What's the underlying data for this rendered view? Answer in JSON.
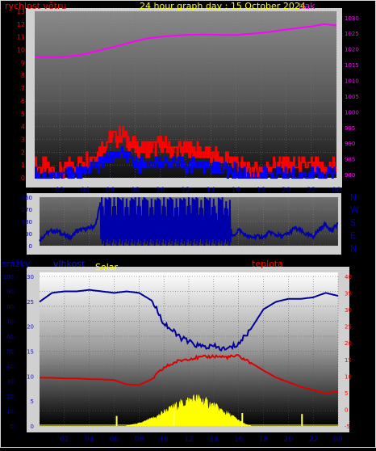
{
  "colors": {
    "background": "#000000",
    "frame": "#d4d4d4",
    "title": "#ffff00",
    "wind_label": "#ff0000",
    "pressure": "#ff00ff",
    "gust": "#ff0000",
    "wind_avg": "#0000ff",
    "direction_line": "#0000aa",
    "direction_label": "#0000aa",
    "precip_label": "#0000cc",
    "humidity": "#000099",
    "temperature": "#dd0000",
    "solar": "#ffff00",
    "precip_bar": "#ffff66"
  },
  "chart_data": [
    {
      "type": "line",
      "id": "wind-pressure",
      "title": "24 hour graph day : 15 October 2024",
      "left_axis_label": "rychlost větru",
      "right_axis_label": "tlak",
      "x_ticks": [
        "02",
        "04",
        "06",
        "08",
        "10",
        "12",
        "14",
        "16",
        "18",
        "20",
        "22",
        "00"
      ],
      "y_left_ticks": [
        "0",
        "1",
        "2",
        "3",
        "4",
        "5",
        "6",
        "7",
        "8",
        "9",
        "10",
        "11",
        "12",
        "13"
      ],
      "y_left_range": [
        0,
        13
      ],
      "y_right_ticks": [
        "980",
        "985",
        "990",
        "995",
        "1000",
        "1005",
        "1010",
        "1015",
        "1020",
        "1025",
        "1030"
      ],
      "y_right_range": [
        979,
        1032
      ],
      "x_range": [
        0,
        24
      ],
      "grid": true,
      "series": [
        {
          "role": "pressure",
          "axis": "right",
          "x": [
            0,
            1,
            2,
            3,
            4,
            5,
            6,
            7,
            8,
            9,
            10,
            11,
            12,
            13,
            14,
            15,
            16,
            17,
            18,
            19,
            20,
            21,
            22,
            23,
            24
          ],
          "values": [
            1017.5,
            1017.4,
            1017.4,
            1017.8,
            1018.4,
            1019.4,
            1020.4,
            1021.4,
            1022.5,
            1023.4,
            1023.9,
            1024.2,
            1024.5,
            1024.6,
            1024.6,
            1024.5,
            1024.5,
            1024.8,
            1025.1,
            1025.6,
            1026.2,
            1026.7,
            1027.2,
            1027.9,
            1027.5
          ]
        },
        {
          "role": "gust",
          "axis": "left",
          "x": [
            0,
            1,
            2,
            3,
            4,
            5,
            6,
            7,
            8,
            9,
            10,
            11,
            12,
            13,
            14,
            15,
            16,
            17,
            18,
            19,
            20,
            21,
            22,
            23,
            24
          ],
          "values": [
            0.9,
            0.7,
            0.5,
            0.9,
            1.4,
            1.9,
            3.1,
            3.3,
            2.3,
            2.2,
            2.5,
            2.2,
            2.2,
            2.0,
            1.7,
            1.4,
            1.2,
            0.4,
            0.7,
            1.0,
            0.9,
            0.8,
            0.9,
            0.6,
            1.0
          ]
        },
        {
          "role": "wind_avg",
          "axis": "left",
          "x": [
            0,
            1,
            2,
            3,
            4,
            5,
            6,
            7,
            8,
            9,
            10,
            11,
            12,
            13,
            14,
            15,
            16,
            17,
            18,
            19,
            20,
            21,
            22,
            23,
            24
          ],
          "values": [
            0.3,
            0.2,
            0.2,
            0.3,
            0.6,
            0.9,
            1.7,
            1.8,
            1.1,
            1.0,
            1.2,
            1.1,
            1.0,
            1.0,
            0.8,
            0.7,
            0.5,
            0.1,
            0.2,
            0.3,
            0.3,
            0.2,
            0.3,
            0.2,
            0.4
          ]
        }
      ]
    },
    {
      "type": "line",
      "id": "wind-direction",
      "x_ticks": [
        "02",
        "04",
        "06",
        "08",
        "10",
        "12",
        "14",
        "16",
        "18",
        "20",
        "22",
        "00"
      ],
      "y_ticks": [
        "0",
        "90",
        "180",
        "270",
        "360"
      ],
      "y_tick_marks": [
        "0",
        "90",
        "180",
        "270",
        "360"
      ],
      "y_range": [
        0,
        360
      ],
      "compass_labels": [
        "N",
        "W",
        "S",
        "E",
        "N"
      ],
      "x_range": [
        0,
        24
      ],
      "grid": true,
      "series": [
        {
          "role": "direction",
          "x": [
            0,
            0.5,
            1,
            1.5,
            2,
            2.5,
            3,
            3.5,
            4,
            4.5,
            5,
            5.5,
            6,
            6.5,
            7,
            7.5,
            8,
            8.5,
            9,
            9.5,
            10,
            10.5,
            11,
            11.5,
            12,
            12.5,
            13,
            13.5,
            14,
            14.5,
            15,
            15.5,
            16,
            16.5,
            17,
            17.5,
            18,
            18.5,
            19,
            19.5,
            20,
            20.5,
            21,
            21.5,
            22,
            22.5,
            23,
            23.5,
            24
          ],
          "values": [
            40,
            90,
            110,
            105,
            80,
            60,
            110,
            120,
            130,
            150,
            360,
            20,
            360,
            30,
            350,
            40,
            360,
            20,
            350,
            40,
            360,
            10,
            350,
            30,
            360,
            60,
            340,
            40,
            350,
            80,
            330,
            60,
            120,
            80,
            60,
            70,
            60,
            100,
            80,
            70,
            90,
            130,
            110,
            80,
            70,
            120,
            160,
            110,
            170
          ]
        }
      ]
    },
    {
      "type": "line",
      "id": "humidity-temp",
      "labels": {
        "precip": "srážky",
        "humidity": "vlhkost",
        "solar": "Solar",
        "temperature": "teplota"
      },
      "x_ticks": [
        "02",
        "04",
        "06",
        "08",
        "10",
        "12",
        "14",
        "16",
        "18",
        "20",
        "22",
        "00"
      ],
      "y_precip_ticks": [
        "0",
        "10",
        "20",
        "30",
        "40",
        "50",
        "60",
        "70",
        "80",
        "90",
        "100"
      ],
      "y_precip_range": [
        0,
        100
      ],
      "y_humidity_ticks": [
        "0",
        "5",
        "10",
        "15",
        "20",
        "25",
        "30"
      ],
      "y_humidity_range": [
        0,
        30
      ],
      "y_temp_ticks": [
        "-5",
        "0",
        "5",
        "10",
        "15",
        "20",
        "25",
        "30",
        "35",
        "40"
      ],
      "y_temp_range": [
        -5,
        40
      ],
      "x_range": [
        0,
        24
      ],
      "grid": true,
      "series": [
        {
          "role": "humidity",
          "axis": "precip",
          "x": [
            0,
            1,
            2,
            3,
            4,
            5,
            6,
            7,
            8,
            9,
            10,
            11,
            12,
            13,
            14,
            15,
            16,
            17,
            18,
            19,
            20,
            21,
            22,
            23,
            24
          ],
          "values": [
            83,
            89,
            90,
            90,
            91,
            90,
            89,
            90,
            89,
            84,
            69,
            61,
            56,
            53,
            53,
            51,
            55,
            65,
            78,
            83,
            85,
            85,
            86,
            89,
            87
          ]
        },
        {
          "role": "temperature",
          "axis": "temp",
          "x": [
            0,
            1,
            2,
            3,
            4,
            5,
            6,
            7,
            8,
            9,
            10,
            11,
            12,
            13,
            14,
            15,
            16,
            17,
            18,
            19,
            20,
            21,
            22,
            23,
            24
          ],
          "values": [
            9.5,
            9.5,
            9.3,
            9.3,
            9.1,
            9.0,
            8.8,
            7.5,
            7.3,
            9.0,
            12.5,
            14.3,
            15.3,
            15.6,
            16.0,
            15.7,
            16.0,
            14.0,
            11.7,
            9.6,
            8.2,
            6.8,
            5.8,
            4.8,
            5.4
          ]
        },
        {
          "role": "solar",
          "axis": "humidity",
          "x": [
            7,
            8,
            8.5,
            9,
            9.5,
            10,
            10.5,
            11,
            11.5,
            12,
            12.5,
            13,
            13.5,
            14,
            14.5,
            15,
            15.5,
            16,
            16.5,
            17
          ],
          "values": [
            0.1,
            0.5,
            0.9,
            1.4,
            1.9,
            2.8,
            3.3,
            4.0,
            4.5,
            5.0,
            5.4,
            5.1,
            4.5,
            4.0,
            3.2,
            2.5,
            1.9,
            1.1,
            0.4,
            0.0
          ]
        },
        {
          "role": "precip",
          "axis": "humidity",
          "x": [
            6.2,
            10.8,
            16.3,
            21.1
          ],
          "values": [
            2.0,
            3.0,
            2.6,
            2.4
          ]
        }
      ]
    }
  ]
}
